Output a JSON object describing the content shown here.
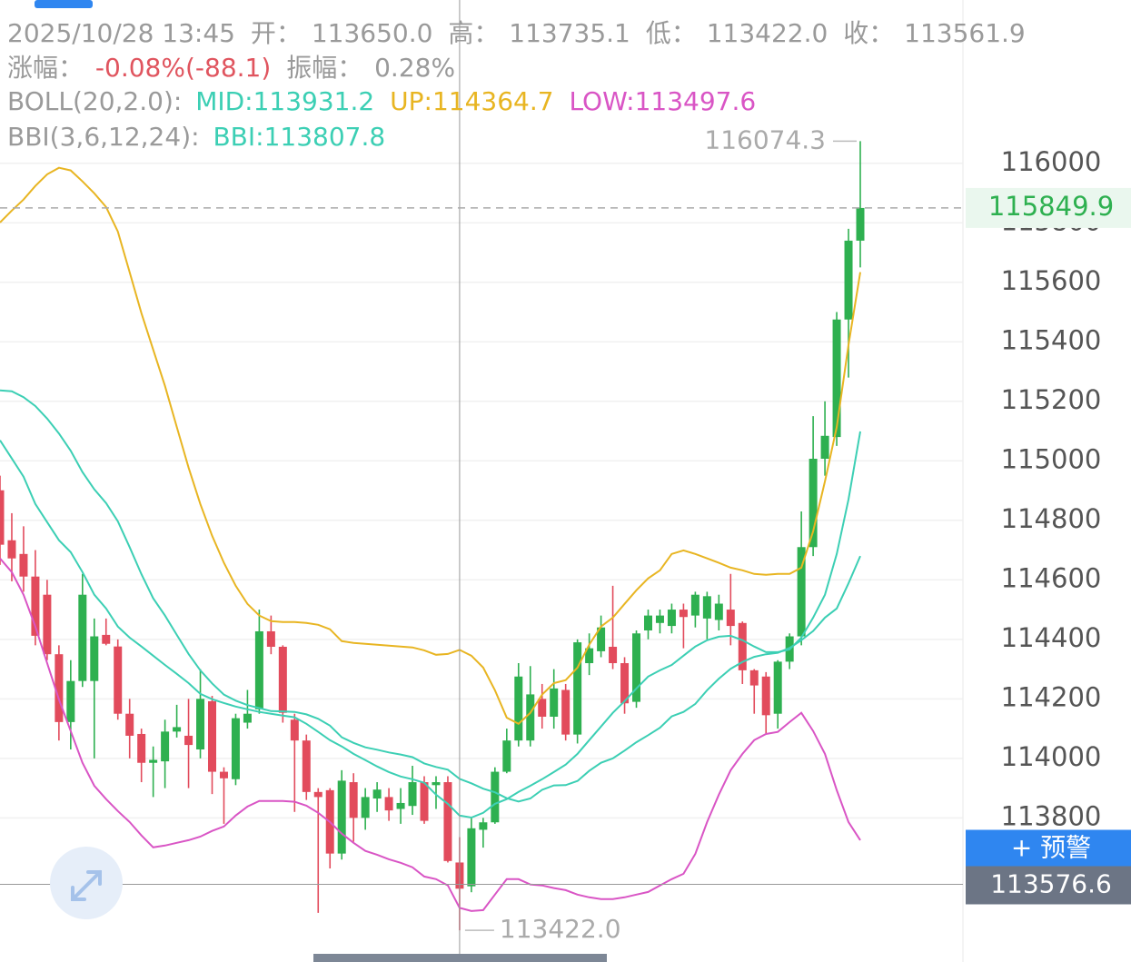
{
  "chart_data": {
    "type": "candlestick",
    "header": {
      "line1": [
        "2025/10/28 13:45",
        "开：",
        "113650.0",
        "高：",
        "113735.1",
        "低：",
        "113422.0",
        "收：",
        "113561.9"
      ],
      "line2": [
        "涨幅：",
        "-0.08%(-88.1)",
        "振幅：",
        "0.28%"
      ],
      "line3": [
        "BOLL(20,2.0):",
        "MID:113931.2",
        "UP:114364.7",
        "LOW:113497.6"
      ],
      "line4": [
        "BBI(3,6,12,24):",
        "BBI:113807.8"
      ]
    },
    "up_color": "#2eb050",
    "down_color": "#e24b5c",
    "open": [
      114901,
      114733,
      114687,
      114611,
      114550,
      114350,
      114122,
      114260,
      114260,
      114415,
      114376,
      114150,
      114082,
      113985,
      113990,
      114090,
      114076,
      114030,
      114192,
      113955,
      113930,
      114120,
      114165,
      114427,
      114375,
      114130,
      114060,
      113887,
      113893,
      113680,
      113920,
      113800,
      113865,
      113870,
      113830,
      113840,
      113920,
      113910,
      113920,
      113650,
      113570,
      113760,
      113785,
      113955,
      114060,
      114060,
      114200,
      114140,
      114230,
      114080,
      114320,
      114360,
      114375,
      114320,
      114190,
      114430,
      114455,
      114445,
      114500,
      114480,
      114470,
      114465,
      114500,
      114455,
      114296,
      114275,
      114150,
      114325,
      114410,
      114710,
      115007,
      115080,
      115475,
      115740
    ],
    "high": [
      114950,
      114824,
      114780,
      114700,
      114600,
      114380,
      114330,
      114620,
      114470,
      114470,
      114400,
      114200,
      114100,
      114040,
      114130,
      114180,
      114200,
      114300,
      114210,
      113970,
      114150,
      114230,
      114500,
      114480,
      114380,
      114150,
      114080,
      113900,
      113900,
      113960,
      113950,
      113900,
      113920,
      113900,
      113900,
      113975,
      113940,
      113940,
      113940,
      113735.1,
      113800,
      113800,
      113970,
      114100,
      114320,
      114310,
      114250,
      114300,
      114250,
      114400,
      114420,
      114480,
      114580,
      114340,
      114430,
      114500,
      114500,
      114520,
      114520,
      114560,
      114560,
      114550,
      114620,
      114460,
      114300,
      114290,
      114330,
      114420,
      114830,
      115150,
      115200,
      115500,
      115780,
      116074.3
    ],
    "low": [
      114650,
      114595,
      114560,
      114380,
      114330,
      114060,
      114030,
      114240,
      114000,
      114380,
      114130,
      114000,
      113920,
      113870,
      113900,
      114070,
      113900,
      114000,
      113880,
      113780,
      113910,
      114100,
      114150,
      114350,
      114120,
      113820,
      113860,
      113481,
      113630,
      113660,
      113720,
      113760,
      113820,
      113790,
      113780,
      113810,
      113780,
      113830,
      113650,
      113422,
      113550,
      113700,
      113780,
      113950,
      114040,
      114040,
      114100,
      114100,
      114060,
      114050,
      114280,
      114340,
      114300,
      114150,
      114170,
      114400,
      114420,
      114420,
      114370,
      114440,
      114400,
      114430,
      114380,
      114250,
      114150,
      114080,
      114100,
      114300,
      114380,
      114680,
      114950,
      115050,
      115280,
      115650
    ],
    "close": [
      114718,
      114672,
      114611,
      114412,
      114350,
      114122,
      114260,
      114550,
      114410,
      114385,
      114150,
      114076,
      113985,
      113995,
      114090,
      114105,
      114045,
      114200,
      113955,
      113933,
      114135,
      114150,
      114427,
      114375,
      114153,
      114060,
      113887,
      113870,
      113680,
      113925,
      113800,
      113870,
      113895,
      113825,
      113850,
      113920,
      113790,
      113920,
      113655,
      113561.9,
      113765,
      113785,
      113955,
      114060,
      114275,
      114215,
      114140,
      114235,
      114080,
      114390,
      114370,
      114440,
      114320,
      114185,
      114420,
      114480,
      114480,
      114500,
      114475,
      114550,
      114545,
      114520,
      114445,
      114296,
      114245,
      114145,
      114325,
      114410,
      114710,
      115007,
      115084,
      115475,
      115740,
      115849.9
    ],
    "lines": [
      {
        "color": "#3ccfb4",
        "values": [
          115237,
          115234,
          115214,
          115184,
          115142,
          115092,
          115034,
          114962,
          114904,
          114858,
          114797,
          114710,
          114619,
          114538,
          114480,
          114415,
          114351,
          114296,
          114252,
          114214,
          114194,
          114179,
          114169,
          114159,
          114158,
          114156,
          114148,
          114133,
          114110,
          114071,
          114052,
          114037,
          114029,
          114020,
          114013,
          114004,
          113983,
          113971,
          113962,
          113931.2,
          113916,
          113898,
          113886,
          113866,
          113855,
          113865,
          113894,
          113909,
          113910,
          113924,
          113958,
          113985,
          114000,
          114026,
          114054,
          114078,
          114103,
          114141,
          114156,
          114183,
          114229,
          114268,
          114301,
          114324,
          114341,
          114350,
          114355,
          114371,
          114397,
          114428,
          114473,
          114504,
          114588,
          114680
        ]
      },
      {
        "color": "#e8b522",
        "values": [
          115801,
          115841,
          115878,
          115924,
          115963,
          115985,
          115976,
          115939,
          115899,
          115853,
          115771,
          115634,
          115496,
          115374,
          115252,
          115114,
          114977,
          114855,
          114748,
          114657,
          114580,
          114519,
          114480,
          114461,
          114458,
          114458,
          114455,
          114449,
          114434,
          114394,
          114388,
          114385,
          114382,
          114379,
          114376,
          114373,
          114363,
          114348,
          114351,
          114364.7,
          114345,
          114305,
          114229,
          114137,
          114116,
          114153,
          114214,
          114253,
          114263,
          114305,
          114382,
          114443,
          114473,
          114519,
          114565,
          114605,
          114632,
          114687,
          114699,
          114687,
          114672,
          114657,
          114641,
          114632,
          114620,
          114617,
          114620,
          114620,
          114641,
          114763,
          114931,
          115114,
          115389,
          115634
        ]
      },
      {
        "color": "#d955c5",
        "values": [
          114672,
          114626,
          114550,
          114443,
          114320,
          114198,
          114092,
          113985,
          113908,
          113863,
          113823,
          113786,
          113741,
          113701,
          113707,
          113716,
          113725,
          113737,
          113756,
          113771,
          113808,
          113838,
          113857,
          113857,
          113857,
          113854,
          113841,
          113817,
          113786,
          113747,
          113716,
          113689,
          113676,
          113661,
          113649,
          113634,
          113603,
          113594,
          113573,
          113497.6,
          113487,
          113490,
          113542,
          113594,
          113594,
          113576,
          113573,
          113564,
          113557,
          113542,
          113533,
          113527,
          113527,
          113533,
          113542,
          113551,
          113573,
          113594,
          113612,
          113679,
          113786,
          113878,
          113960,
          114015,
          114061,
          114082,
          114089,
          114122,
          114153,
          114092,
          114015,
          113893,
          113786,
          113725
        ]
      },
      {
        "color": "#3ccfb4",
        "values": [
          115069,
          115008,
          114947,
          114855,
          114794,
          114733,
          114693,
          114626,
          114550,
          114504,
          114443,
          114406,
          114376,
          114345,
          114314,
          114284,
          114253,
          114217,
          114199,
          114186,
          114174,
          114165,
          114156,
          114150,
          114144,
          114138,
          114116,
          114089,
          114061,
          114040,
          114015,
          113994,
          113973,
          113954,
          113939,
          113930,
          113918,
          113878,
          113847,
          113807.8,
          113801,
          113817,
          113847,
          113863,
          113887,
          113908,
          113930,
          113954,
          113979,
          114015,
          114061,
          114107,
          114153,
          114192,
          114235,
          114275,
          114296,
          114314,
          114345,
          114376,
          114397,
          114409,
          114412,
          114397,
          114376,
          114357,
          114357,
          114366,
          114406,
          114473,
          114550,
          114687,
          114870,
          115099
        ]
      }
    ],
    "ylim": [
      113340,
      116500
    ],
    "yticks": [
      113800,
      114000,
      114200,
      114400,
      114600,
      114800,
      115000,
      115200,
      115400,
      115600,
      115800,
      116000
    ],
    "grid": true,
    "last_price": 115849.9,
    "crosshair_price": 113576.6,
    "min_label": {
      "value": 113422,
      "label": "113422.0"
    },
    "alert_button": "+ 预警"
  }
}
